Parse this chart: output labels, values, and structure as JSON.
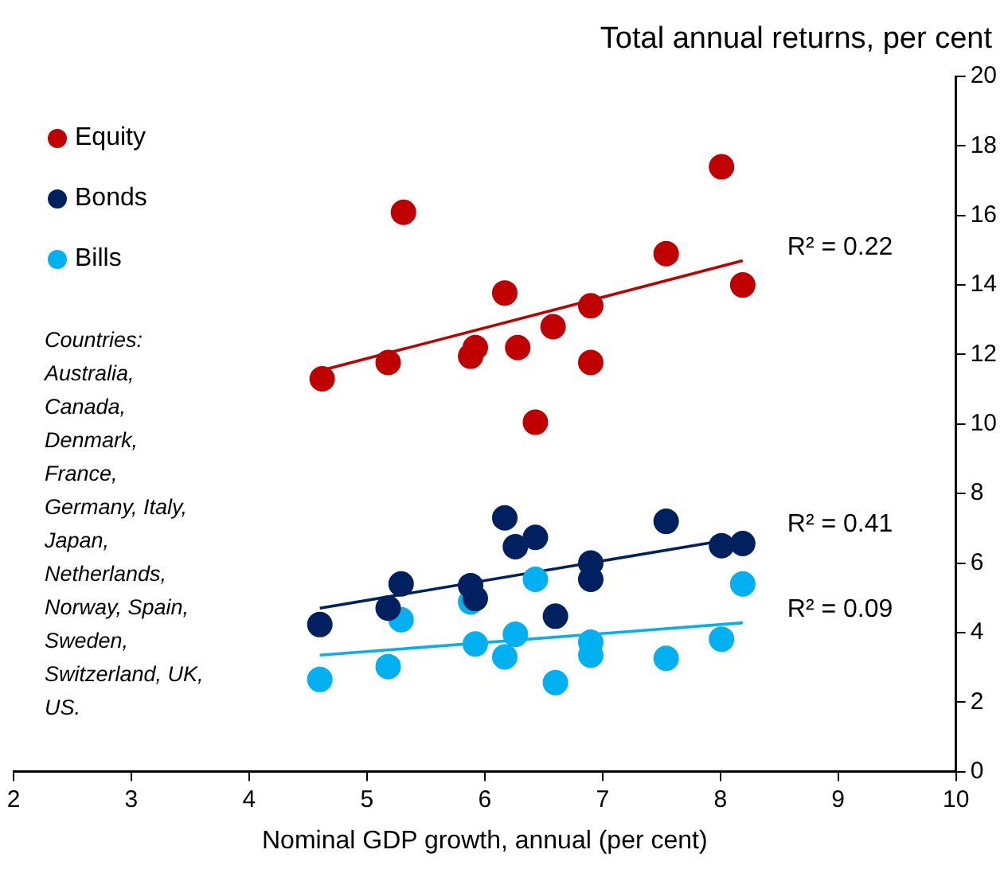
{
  "chart_data": {
    "type": "scatter",
    "xlabel": "Nominal GDP growth, annual (per cent)",
    "ylabel": "Total annual returns, per cent",
    "xlim": [
      2,
      10
    ],
    "xticks": [
      2,
      3,
      4,
      5,
      6,
      7,
      8,
      9,
      10
    ],
    "ylim": [
      0,
      20
    ],
    "yticks": [
      0,
      2,
      4,
      6,
      8,
      10,
      12,
      14,
      16,
      18,
      20
    ],
    "grid": false,
    "legend": "top left",
    "marker": "circle",
    "series": [
      {
        "name": "Equity",
        "color": "#c00000",
        "x": [
          4.62,
          5.18,
          5.31,
          5.88,
          5.92,
          6.17,
          6.28,
          6.43,
          6.58,
          6.9,
          6.9,
          7.54,
          8.01,
          8.19
        ],
        "values": [
          11.3,
          11.77,
          16.09,
          11.95,
          12.2,
          13.77,
          12.2,
          10.05,
          12.8,
          13.4,
          11.77,
          14.9,
          17.4,
          14.0
        ]
      },
      {
        "name": "Bonds",
        "color": "#002060",
        "x": [
          4.6,
          5.18,
          5.29,
          5.88,
          5.92,
          6.17,
          6.26,
          6.43,
          6.6,
          6.9,
          6.9,
          7.54,
          8.01,
          8.19
        ],
        "values": [
          4.23,
          4.7,
          5.4,
          5.35,
          4.98,
          7.3,
          6.47,
          6.74,
          4.47,
          6.0,
          5.53,
          7.2,
          6.5,
          6.56
        ]
      },
      {
        "name": "Bills",
        "color": "#00b0f0",
        "x": [
          4.6,
          5.18,
          5.29,
          5.88,
          5.92,
          6.17,
          6.26,
          6.43,
          6.6,
          6.9,
          6.9,
          7.54,
          8.01,
          8.19
        ],
        "values": [
          2.65,
          3.02,
          4.37,
          4.88,
          3.67,
          3.3,
          3.95,
          5.53,
          2.56,
          3.72,
          3.35,
          3.26,
          3.81,
          5.4
        ]
      },
      {
        "type": "line",
        "color": "#c00000",
        "marker": "none",
        "x": [
          4.6,
          8.19
        ],
        "values": [
          11.53,
          14.7
        ]
      },
      {
        "type": "line",
        "color": "#002060",
        "marker": "none",
        "x": [
          4.6,
          8.19
        ],
        "values": [
          4.7,
          6.74
        ]
      },
      {
        "type": "line",
        "color": "#00b0f0",
        "marker": "none",
        "x": [
          4.6,
          8.19
        ],
        "values": [
          3.35,
          4.28
        ]
      }
    ],
    "annotations": [
      "R² = 0.22",
      "R² = 0.41",
      "R² = 0.09",
      "Countries:\nAustralia,\nCanada,\nDenmark,\nFrance,\nGermany, Italy,\nJapan,\nNetherlands,\nNorway, Spain,\nSweden,\nSwitzerland, UK,\nUS."
    ]
  }
}
